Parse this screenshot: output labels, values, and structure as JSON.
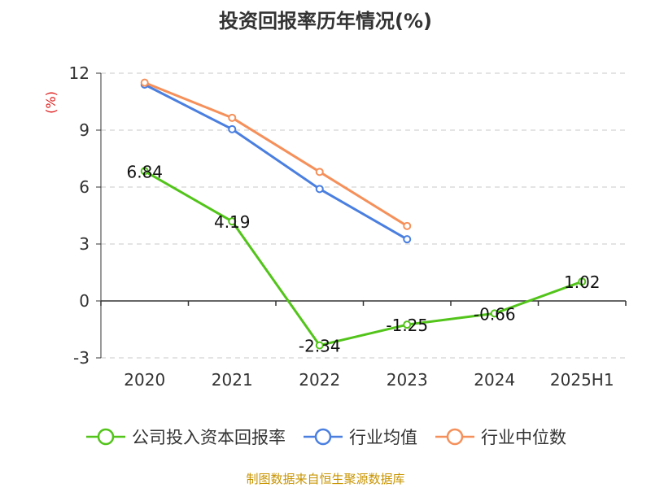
{
  "chart_data": {
    "type": "line",
    "title": "投资回报率历年情况(%)",
    "ylabel": "(%)",
    "categories": [
      "2020",
      "2021",
      "2022",
      "2023",
      "2024",
      "2025H1"
    ],
    "ylim": [
      -3,
      12
    ],
    "yticks": [
      -3,
      0,
      3,
      6,
      9,
      12
    ],
    "grid": true,
    "legend_position": "bottom",
    "series": [
      {
        "name": "公司投入资本回报率",
        "color": "#52c41a",
        "values": [
          6.84,
          4.19,
          -2.34,
          -1.25,
          -0.66,
          1.02
        ],
        "labels": [
          "6.84",
          "4.19",
          "-2.34",
          "-1.25",
          "-0.66",
          "1.02"
        ]
      },
      {
        "name": "行业均值",
        "color": "#4a7fe0",
        "values": [
          11.4,
          9.05,
          5.9,
          3.25,
          null,
          null
        ]
      },
      {
        "name": "行业中位数",
        "color": "#f5905a",
        "values": [
          11.5,
          9.65,
          6.8,
          3.95,
          null,
          null
        ]
      }
    ]
  },
  "source": "制图数据来自恒生聚源数据库"
}
